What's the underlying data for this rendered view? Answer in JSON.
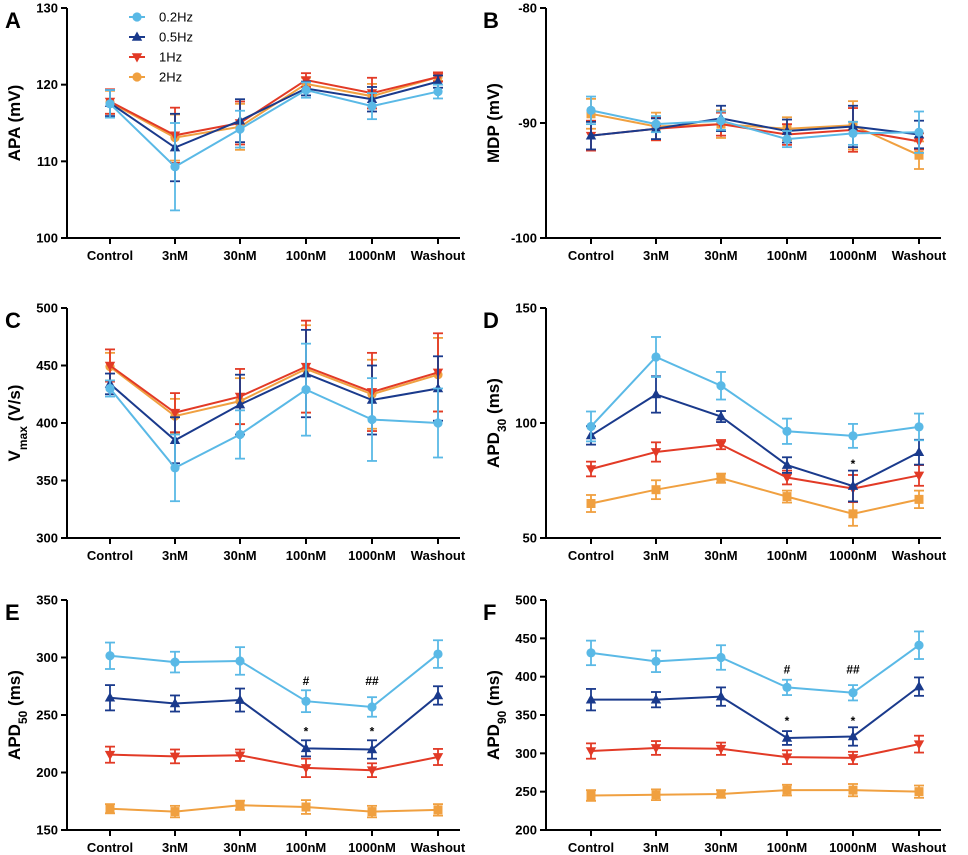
{
  "colors": {
    "0.2Hz": "#5ab9e6",
    "0.5Hz": "#1a3a8c",
    "1Hz": "#e23a26",
    "2Hz": "#f0a040"
  },
  "legend": [
    {
      "label": "0.2Hz",
      "marker": "circle"
    },
    {
      "label": "0.5Hz",
      "marker": "triangle-up"
    },
    {
      "label": "1Hz",
      "marker": "triangle-down"
    },
    {
      "label": "2Hz",
      "marker": "circle"
    }
  ],
  "chart_data": [
    {
      "type": "line",
      "panel": "A",
      "ylabel": "APA (mV)",
      "categories": [
        "Control",
        "3nM",
        "30nM",
        "100nM",
        "1000nM",
        "Washout"
      ],
      "ylim": [
        100,
        130
      ],
      "yticks": [
        100,
        110,
        120,
        130
      ],
      "ytick_labels": [
        "100",
        "110",
        "120",
        "130"
      ],
      "series": [
        {
          "name": "0.2Hz",
          "marker": "circle",
          "values": [
            117.5,
            109.3,
            114.2,
            119.3,
            117.2,
            119.1
          ],
          "errors": [
            1.8,
            5.7,
            2.4,
            1.0,
            1.7,
            0.9
          ]
        },
        {
          "name": "0.5Hz",
          "marker": "triangle-up",
          "values": [
            117.6,
            111.8,
            115.3,
            119.5,
            118.1,
            120.4
          ],
          "errors": [
            1.7,
            4.4,
            2.8,
            0.9,
            1.6,
            0.8
          ]
        },
        {
          "name": "1Hz",
          "marker": "triangle-down",
          "values": [
            117.8,
            113.4,
            115.0,
            120.6,
            118.9,
            121.0
          ],
          "errors": [
            1.6,
            3.6,
            2.8,
            0.9,
            2.0,
            0.6
          ]
        },
        {
          "name": "2Hz",
          "marker": "circle",
          "values": [
            117.7,
            113.1,
            114.5,
            120.1,
            118.5,
            121.0
          ],
          "errors": [
            1.5,
            3.0,
            3.0,
            0.8,
            1.6,
            0.5
          ]
        }
      ],
      "annotations": []
    },
    {
      "type": "line",
      "panel": "B",
      "ylabel": "MDP (mV)",
      "categories": [
        "Control",
        "3nM",
        "30nM",
        "100nM",
        "1000nM",
        "Washout"
      ],
      "ylim": [
        -100,
        -80
      ],
      "yticks": [
        -100,
        -90,
        -80
      ],
      "ytick_labels": [
        "-100",
        "-90",
        "-80"
      ],
      "series": [
        {
          "name": "0.2Hz",
          "marker": "circle",
          "values": [
            -88.9,
            -90.1,
            -89.8,
            -91.4,
            -90.9,
            -90.8
          ],
          "errors": [
            1.2,
            0.7,
            0.8,
            0.7,
            1.0,
            1.8
          ]
        },
        {
          "name": "0.5Hz",
          "marker": "triangle-up",
          "values": [
            -91.1,
            -90.5,
            -89.6,
            -90.7,
            -90.3,
            -91.0
          ],
          "errors": [
            1.2,
            0.9,
            1.1,
            1.0,
            1.8,
            1.2
          ]
        },
        {
          "name": "1Hz",
          "marker": "triangle-down",
          "values": [
            -91.1,
            -90.5,
            -90.1,
            -91.0,
            -90.6,
            -91.6
          ],
          "errors": [
            1.3,
            1.0,
            1.0,
            0.9,
            1.9,
            0.7
          ]
        },
        {
          "name": "2Hz",
          "marker": "circle",
          "values": [
            -89.2,
            -90.3,
            -90.1,
            -90.5,
            -90.2,
            -92.8
          ],
          "errors": [
            1.3,
            1.2,
            1.2,
            1.0,
            2.1,
            1.2
          ]
        }
      ],
      "annotations": []
    },
    {
      "type": "line",
      "panel": "C",
      "ylabel": "V",
      "ylabel_sub": "max",
      "ylabel_tail": " (V/s)",
      "categories": [
        "Control",
        "3nM",
        "30nM",
        "100nM",
        "1000nM",
        "Washout"
      ],
      "ylim": [
        300,
        500
      ],
      "yticks": [
        300,
        350,
        400,
        450,
        500
      ],
      "ytick_labels": [
        "300",
        "350",
        "400",
        "450",
        "500"
      ],
      "series": [
        {
          "name": "0.2Hz",
          "marker": "circle",
          "values": [
            430,
            361,
            390,
            429,
            403,
            400
          ],
          "errors": [
            7,
            29,
            21,
            40,
            36,
            30
          ]
        },
        {
          "name": "0.5Hz",
          "marker": "triangle-up",
          "values": [
            434,
            385,
            416,
            443,
            420,
            430
          ],
          "errors": [
            9,
            20,
            26,
            38,
            30,
            28
          ]
        },
        {
          "name": "1Hz",
          "marker": "triangle-down",
          "values": [
            450,
            409,
            423,
            449,
            427,
            444
          ],
          "errors": [
            14,
            17,
            24,
            40,
            34,
            34
          ]
        },
        {
          "name": "2Hz",
          "marker": "circle",
          "values": [
            449,
            406,
            419,
            447,
            425,
            442
          ],
          "errors": [
            12,
            15,
            20,
            38,
            30,
            32
          ]
        }
      ],
      "annotations": []
    },
    {
      "type": "line",
      "panel": "D",
      "ylabel": "APD",
      "ylabel_sub": "30",
      "ylabel_tail": " (ms)",
      "categories": [
        "Control",
        "3nM",
        "30nM",
        "100nM",
        "1000nM",
        "Washout"
      ],
      "ylim": [
        50,
        150
      ],
      "yticks": [
        50,
        100,
        150
      ],
      "ytick_labels": [
        "50",
        "100",
        "150"
      ],
      "series": [
        {
          "name": "0.2Hz",
          "marker": "circle",
          "values": [
            98.5,
            128.7,
            116.2,
            96.4,
            94.4,
            98.3
          ],
          "errors": [
            6.5,
            8.7,
            6.0,
            5.5,
            5.2,
            5.8
          ]
        },
        {
          "name": "0.5Hz",
          "marker": "triangle-up",
          "values": [
            94.6,
            112.4,
            102.8,
            81.7,
            72.6,
            87.3
          ],
          "errors": [
            4.0,
            7.9,
            2.4,
            3.4,
            6.7,
            5.4
          ]
        },
        {
          "name": "1Hz",
          "marker": "triangle-down",
          "values": [
            80.0,
            87.4,
            90.6,
            76.3,
            71.5,
            77.2
          ],
          "errors": [
            3.2,
            4.2,
            2.0,
            3.0,
            5.9,
            4.5
          ]
        },
        {
          "name": "2Hz",
          "marker": "circle",
          "values": [
            65.0,
            71.0,
            76.0,
            68.0,
            60.5,
            66.8
          ],
          "errors": [
            3.7,
            4.1,
            2.0,
            2.6,
            5.2,
            3.8
          ]
        }
      ],
      "annotations": [
        {
          "category": "1000nM",
          "value": 80.5,
          "text": "*"
        }
      ]
    },
    {
      "type": "line",
      "panel": "E",
      "ylabel": "APD",
      "ylabel_sub": "50",
      "ylabel_tail": " (ms)",
      "categories": [
        "Control",
        "3nM",
        "30nM",
        "100nM",
        "1000nM",
        "Washout"
      ],
      "ylim": [
        150,
        350
      ],
      "yticks": [
        150,
        200,
        250,
        300,
        350
      ],
      "ytick_labels": [
        "150",
        "200",
        "250",
        "300",
        "350"
      ],
      "series": [
        {
          "name": "0.2Hz",
          "marker": "circle",
          "values": [
            301.5,
            296,
            297,
            262,
            257,
            303
          ],
          "errors": [
            11.5,
            9,
            12,
            9.5,
            8.5,
            12
          ]
        },
        {
          "name": "0.5Hz",
          "marker": "triangle-up",
          "values": [
            265,
            260,
            263,
            221,
            220,
            267
          ],
          "errors": [
            11,
            7,
            10,
            7,
            8,
            8
          ]
        },
        {
          "name": "1Hz",
          "marker": "triangle-down",
          "values": [
            215.5,
            214,
            215,
            204,
            202,
            213.5
          ],
          "errors": [
            7,
            6,
            5,
            8,
            6,
            7
          ]
        },
        {
          "name": "2Hz",
          "marker": "circle",
          "values": [
            168.5,
            166,
            171.5,
            170,
            166,
            167.5
          ],
          "errors": [
            4,
            5,
            4,
            6,
            5,
            5
          ]
        }
      ],
      "annotations": [
        {
          "category": "100nM",
          "value": 276,
          "text": "#"
        },
        {
          "category": "1000nM",
          "value": 276,
          "text": "##"
        },
        {
          "category": "100nM",
          "value": 232,
          "text": "*"
        },
        {
          "category": "1000nM",
          "value": 232,
          "text": "*"
        }
      ]
    },
    {
      "type": "line",
      "panel": "F",
      "ylabel": "APD",
      "ylabel_sub": "90",
      "ylabel_tail": " (ms)",
      "categories": [
        "Control",
        "3nM",
        "30nM",
        "100nM",
        "1000nM",
        "Washout"
      ],
      "ylim": [
        200,
        500
      ],
      "yticks": [
        200,
        250,
        300,
        350,
        400,
        450,
        500
      ],
      "ytick_labels": [
        "200",
        "250",
        "300",
        "350",
        "400",
        "450",
        "500"
      ],
      "series": [
        {
          "name": "0.2Hz",
          "marker": "circle",
          "values": [
            431,
            420,
            425,
            386,
            379,
            441
          ],
          "errors": [
            16,
            14,
            16,
            10,
            10,
            18
          ]
        },
        {
          "name": "0.5Hz",
          "marker": "triangle-up",
          "values": [
            370,
            370,
            374,
            320,
            322,
            387
          ],
          "errors": [
            14,
            10,
            12,
            9,
            12,
            12
          ]
        },
        {
          "name": "1Hz",
          "marker": "triangle-down",
          "values": [
            303,
            307,
            306,
            295,
            294,
            312
          ],
          "errors": [
            10,
            9,
            8,
            9,
            8,
            11
          ]
        },
        {
          "name": "2Hz",
          "marker": "circle",
          "values": [
            245,
            246,
            247,
            252,
            252,
            250
          ],
          "errors": [
            7,
            7,
            5,
            7,
            8,
            8
          ]
        }
      ],
      "annotations": [
        {
          "category": "100nM",
          "value": 404,
          "text": "#"
        },
        {
          "category": "1000nM",
          "value": 404,
          "text": "##"
        },
        {
          "category": "100nM",
          "value": 337,
          "text": "*"
        },
        {
          "category": "1000nM",
          "value": 337,
          "text": "*"
        }
      ]
    }
  ]
}
